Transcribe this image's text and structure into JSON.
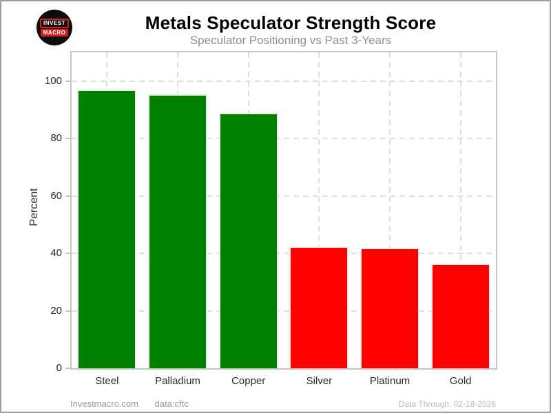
{
  "page": {
    "background": "#ffffff",
    "frame_border_color": "#9e9e9e"
  },
  "logo": {
    "line1": "INVEST",
    "line2": "MACRO",
    "bg_color": "#0c0c0c",
    "accent_color": "#d01f1f"
  },
  "header": {
    "title": "Metals Speculator Strength Score",
    "subtitle": "Speculator Positioning vs Past 3-Years"
  },
  "footer": {
    "left_text": "Investmacro.com",
    "source_text": "data:cftc",
    "right_text": "Data Through: 02-18-2026"
  },
  "chart_data": {
    "type": "bar",
    "title": "Metals Speculator Strength Score",
    "subtitle": "Speculator Positioning vs Past 3-Years",
    "xlabel": "",
    "ylabel": "Percent",
    "categories": [
      "Steel",
      "Palladium",
      "Copper",
      "Silver",
      "Platinum",
      "Gold"
    ],
    "values": [
      97,
      95.5,
      88.8,
      42.5,
      42,
      36.5
    ],
    "bar_colors": [
      "#008000",
      "#008000",
      "#008000",
      "#ff0000",
      "#ff0000",
      "#ff0000"
    ],
    "positive_color": "#008000",
    "negative_color": "#ff0000",
    "yticks": [
      0,
      20,
      40,
      60,
      80,
      100
    ],
    "ylim": [
      0,
      110
    ],
    "grid": "dashed, horizontal and vertical, behind bars",
    "legend": "none"
  }
}
